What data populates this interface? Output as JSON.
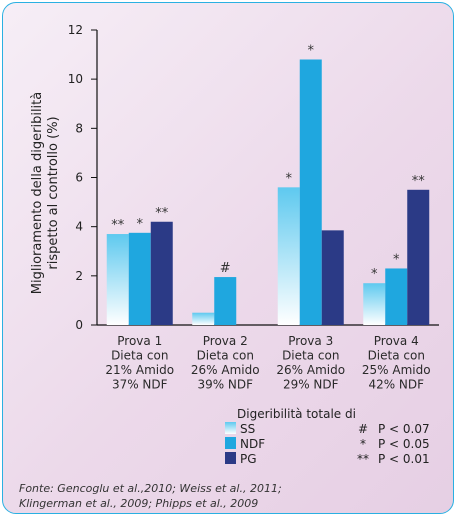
{
  "colors": {
    "SS": "#b9e6f7",
    "NDF": "#1fa7df",
    "PG": "#2b3a86",
    "frame": "#2ab0e2"
  },
  "chart_data": {
    "type": "bar",
    "ylabel_line1": "Miglioramento della digeribilità",
    "ylabel_line2": "rispetto al controllo (%)",
    "ylim": [
      0,
      12
    ],
    "yticks": [
      0,
      2,
      4,
      6,
      8,
      10,
      12
    ],
    "categories": [
      [
        "Prova 1",
        "Dieta con",
        "21% Amido",
        "37% NDF"
      ],
      [
        "Prova 2",
        "Dieta con",
        "26% Amido",
        "39% NDF"
      ],
      [
        "Prova 3",
        "Dieta con",
        "26% Amido",
        "29% NDF"
      ],
      [
        "Prova 4",
        "Dieta con",
        "25% Amido",
        "42% NDF"
      ]
    ],
    "series": [
      {
        "name": "SS",
        "values": [
          3.7,
          0.5,
          5.6,
          1.7
        ],
        "marks": [
          "**",
          "",
          "*",
          "*"
        ]
      },
      {
        "name": "NDF",
        "values": [
          3.75,
          1.95,
          10.8,
          2.3
        ],
        "marks": [
          "*",
          "#",
          "*",
          "*"
        ]
      },
      {
        "name": "PG",
        "values": [
          4.2,
          0,
          3.85,
          5.5
        ],
        "marks": [
          "**",
          "",
          "",
          "**"
        ]
      }
    ],
    "legend_title": "Digeribilità totale di",
    "significance": [
      {
        "symbol": "#",
        "text": "P < 0.07"
      },
      {
        "symbol": "*",
        "text": "P < 0.05"
      },
      {
        "symbol": "**",
        "text": "P < 0.01"
      }
    ],
    "grid": false,
    "legend_position": "bottom-center"
  },
  "source_line1": "Fonte: Gencoglu et al.,2010; Weiss et al., 2011;",
  "source_line2": "Klingerman et al., 2009; Phipps et al., 2009"
}
